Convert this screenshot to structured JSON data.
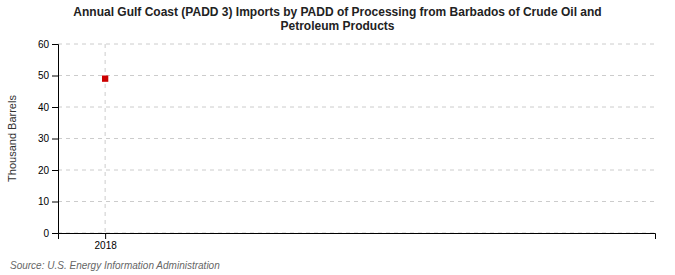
{
  "chart_data": {
    "type": "scatter",
    "title": "Annual Gulf Coast (PADD 3) Imports by PADD of Processing from Barbados of Crude Oil and\nPetroleum Products",
    "ylabel": "Thousand Barrels",
    "source": "Source: U.S. Energy Information Administration",
    "x": [
      2018
    ],
    "values": [
      49
    ],
    "color": "#cc0000",
    "marker": "square",
    "xlim": [
      2017.4,
      2025
    ],
    "xticks": [
      2018
    ],
    "ylim": [
      0,
      60
    ],
    "yticks": [
      0,
      10,
      20,
      30,
      40,
      50,
      60
    ],
    "grid": true
  }
}
